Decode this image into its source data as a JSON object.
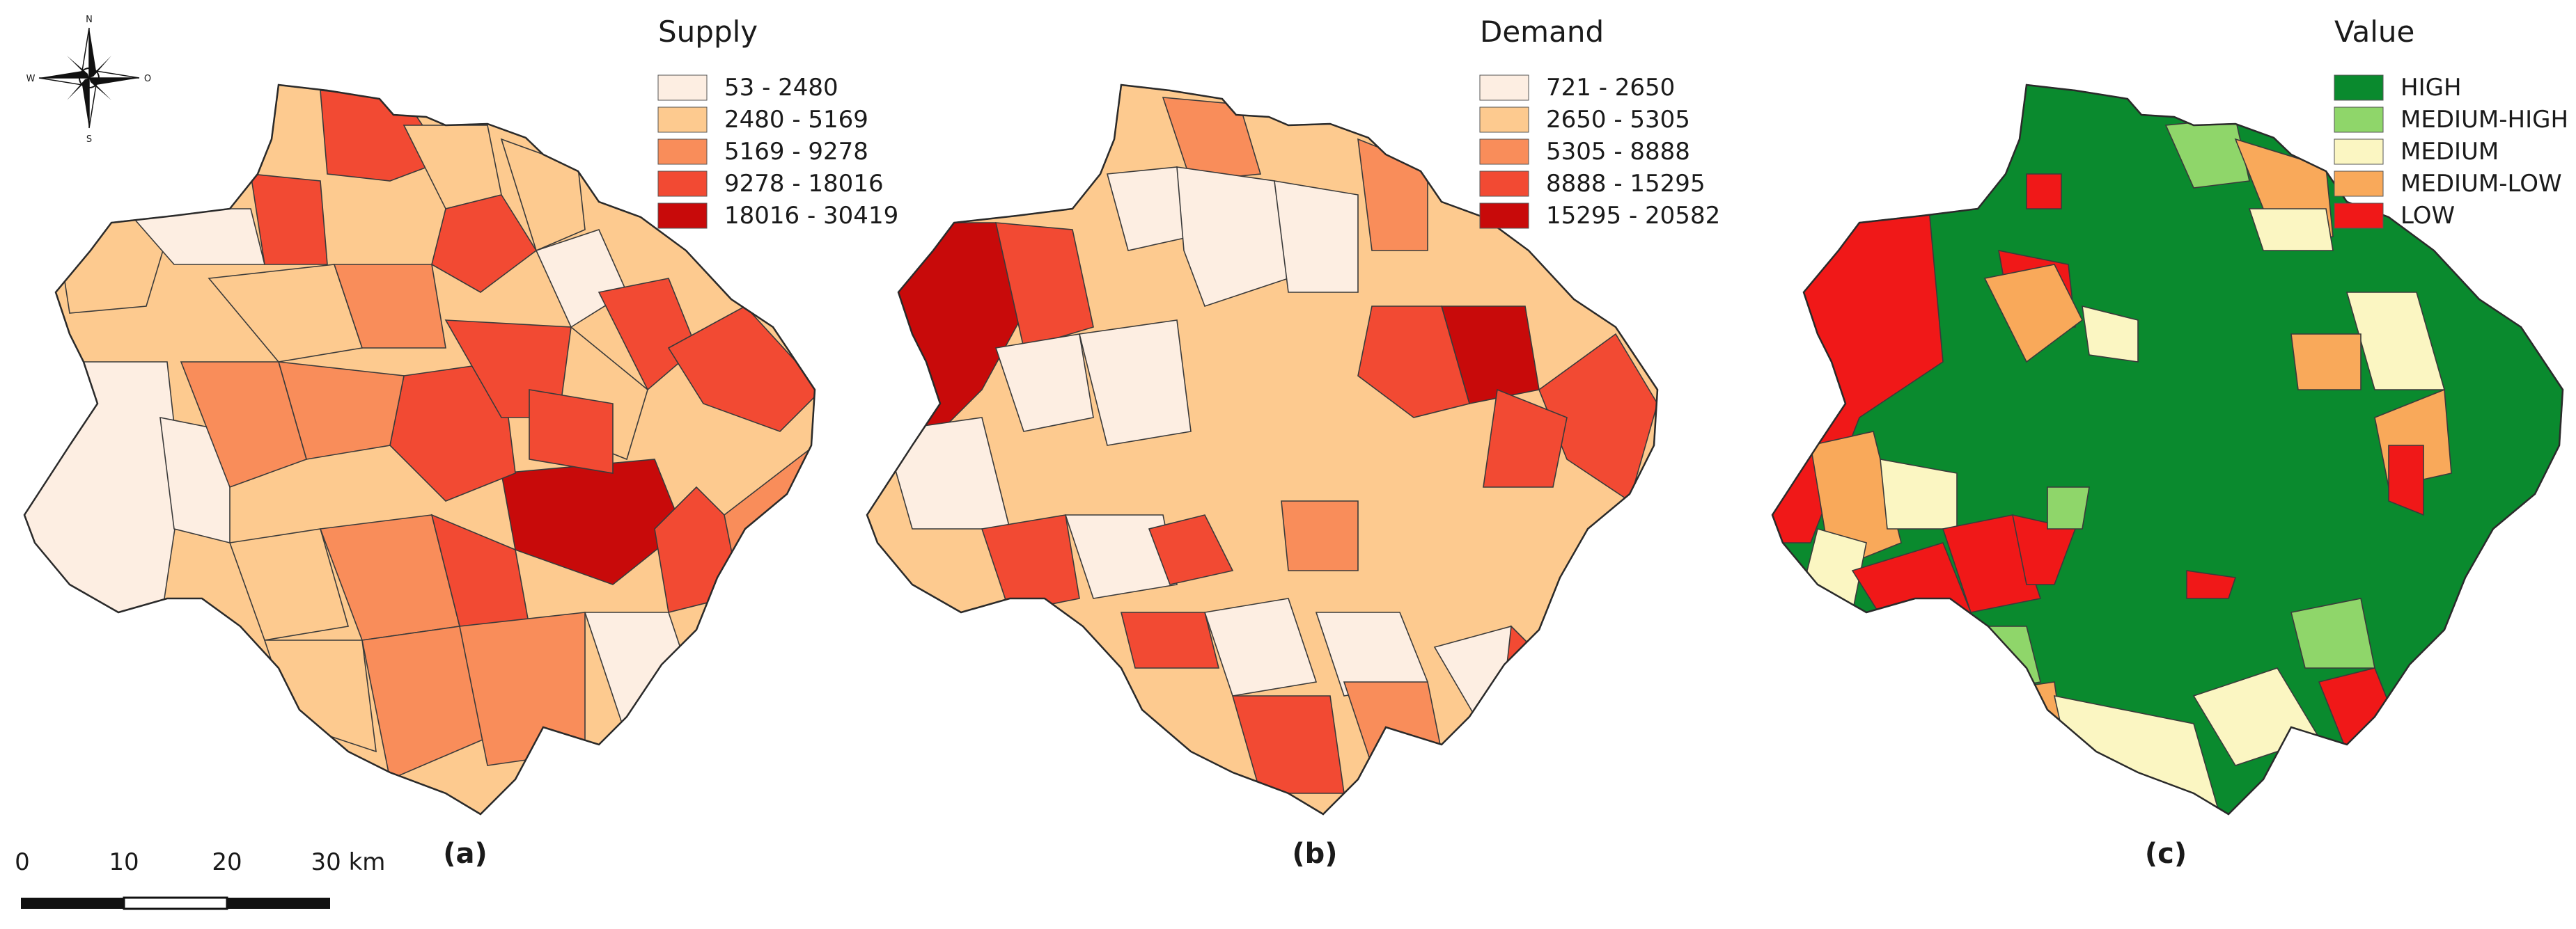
{
  "compass": {
    "n": "N",
    "s": "S",
    "w": "W",
    "e": "O"
  },
  "panels": [
    {
      "label": "(a)",
      "legend": {
        "title": "Supply",
        "classes": [
          {
            "label": "53 - 2480",
            "color": "#fdeee2"
          },
          {
            "label": "2480 - 5169",
            "color": "#fdca8f"
          },
          {
            "label": "5169 - 9278",
            "color": "#f98d5a"
          },
          {
            "label": "9278 - 18016",
            "color": "#f24a33"
          },
          {
            "label": "18016 - 30419",
            "color": "#c80a0a"
          }
        ]
      }
    },
    {
      "label": "(b)",
      "legend": {
        "title": "Demand",
        "classes": [
          {
            "label": "721 - 2650",
            "color": "#fdeee2"
          },
          {
            "label": "2650 - 5305",
            "color": "#fdca8f"
          },
          {
            "label": "5305 - 8888",
            "color": "#f98d5a"
          },
          {
            "label": "8888 - 15295",
            "color": "#f24a33"
          },
          {
            "label": "15295 - 20582",
            "color": "#c80a0a"
          }
        ]
      }
    },
    {
      "label": "(c)",
      "legend": {
        "title": "Value",
        "classes": [
          {
            "label": "HIGH",
            "color": "#0a8a2e"
          },
          {
            "label": "MEDIUM-HIGH",
            "color": "#8fd66a"
          },
          {
            "label": "MEDIUM",
            "color": "#fbf6c2"
          },
          {
            "label": "MEDIUM-LOW",
            "color": "#f9a95a"
          },
          {
            "label": "LOW",
            "color": "#f01818"
          }
        ]
      }
    }
  ],
  "scale_bar": {
    "ticks": [
      "0",
      "10",
      "20",
      "30 km"
    ]
  }
}
